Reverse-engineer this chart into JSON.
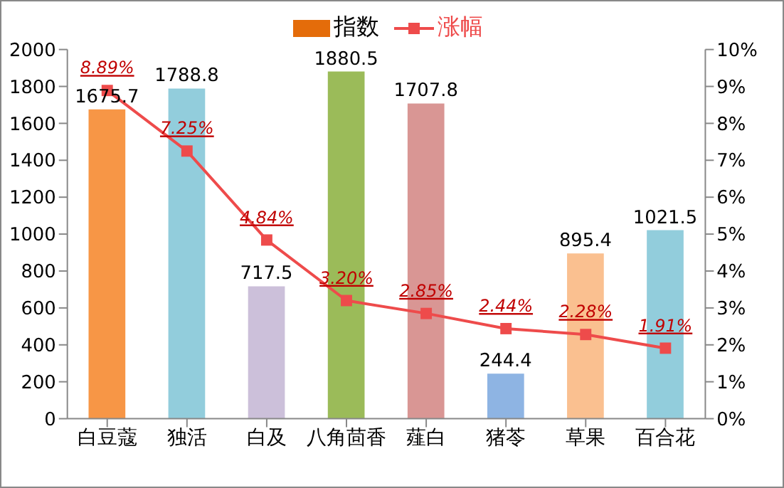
{
  "chart_data": {
    "type": "bar",
    "categories": [
      "白豆蔻",
      "独活",
      "白及",
      "八角茴香",
      "薤白",
      "猪苓",
      "草果",
      "百合花"
    ],
    "series": [
      {
        "name": "指数",
        "colors": [
          "#f79646",
          "#92cddc",
          "#ccc0da",
          "#9bbb59",
          "#d99694",
          "#8eb4e3",
          "#fac090",
          "#92cddc"
        ],
        "color": "#e46c0a",
        "values": [
          1675.7,
          1788.8,
          717.5,
          1880.5,
          1707.8,
          244.4,
          895.4,
          1021.5
        ]
      },
      {
        "name": "涨幅",
        "type": "line",
        "axis": "y2",
        "color": "#ee4b4b",
        "marker": "square",
        "values": [
          8.89,
          7.25,
          4.84,
          3.2,
          2.85,
          2.44,
          2.28,
          1.91
        ],
        "value_labels": [
          "8.89%",
          "7.25%",
          "4.84%",
          "3.20%",
          "2.85%",
          "2.44%",
          "2.28%",
          "1.91%"
        ]
      }
    ],
    "data_labels": true,
    "ylim": [
      0,
      2000
    ],
    "yticks": [
      0,
      200,
      400,
      600,
      800,
      1000,
      1200,
      1400,
      1600,
      1800,
      2000
    ],
    "y2lim": [
      0,
      10
    ],
    "y2ticks": [
      {
        "value": 0,
        "label": "0%"
      },
      {
        "value": 1,
        "label": "1%"
      },
      {
        "value": 2,
        "label": "2%"
      },
      {
        "value": 3,
        "label": "3%"
      },
      {
        "value": 4,
        "label": "4%"
      },
      {
        "value": 5,
        "label": "5%"
      },
      {
        "value": 6,
        "label": "6%"
      },
      {
        "value": 7,
        "label": "7%"
      },
      {
        "value": 8,
        "label": "8%"
      },
      {
        "value": 9,
        "label": "9%"
      },
      {
        "value": 10,
        "label": "10%"
      }
    ],
    "grid": false,
    "legend": "top"
  }
}
